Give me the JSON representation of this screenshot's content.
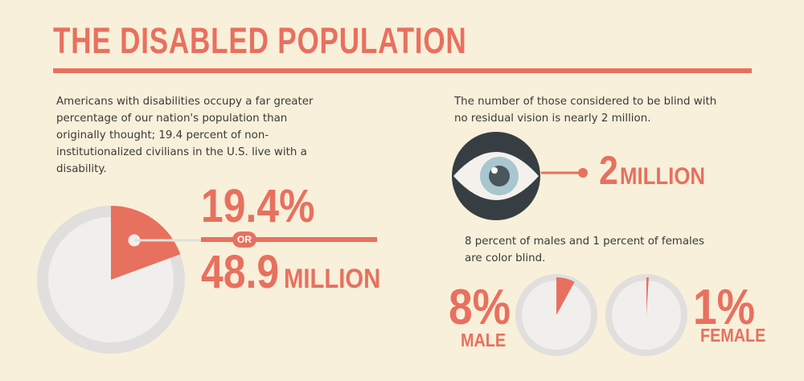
{
  "title": "THE DISABLED POPULATION",
  "intro_text": "Americans with disabilities occupy a far greater percentage of our nation's population than originally thought; 19.4 percent of non-institutionalized civilians in the U.S. live with a disability.",
  "disabled_share": {
    "percent_label": "19.4%",
    "or_label": "OR",
    "count_number": "48.9",
    "count_unit": "MILLION"
  },
  "blind": {
    "text": "The number of those considered to be blind with no residual vision is nearly 2 million.",
    "number": "2",
    "unit": "MILLION"
  },
  "color_blind": {
    "text": "8 percent of males and 1 percent of females are color blind.",
    "male_percent_label": "8%",
    "male_label": "MALE",
    "female_percent_label": "1%",
    "female_label": "FEMALE"
  },
  "colors": {
    "accent": "#e8705f",
    "background": "#f8f0da",
    "pie_track": "#e0dfdd",
    "pie_fill": "#f1efed",
    "eye_circle": "#363e44",
    "iris": "#a9c6d0"
  },
  "chart_data": [
    {
      "type": "pie",
      "values": [
        19.4,
        80.6
      ]
    },
    {
      "type": "pie",
      "values": [
        8,
        92
      ]
    },
    {
      "type": "pie",
      "values": [
        1,
        99
      ]
    }
  ]
}
